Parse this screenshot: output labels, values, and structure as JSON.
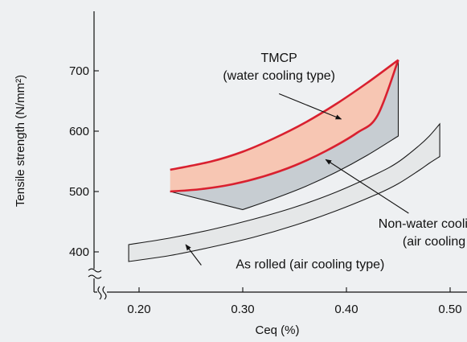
{
  "chart_data": {
    "type": "area",
    "title": "",
    "xlabel": "Ceq (%)",
    "ylabel": "Tensile strength (N/mm²)",
    "xlim": [
      0.15,
      0.51
    ],
    "ylim": [
      380,
      760
    ],
    "grid": false,
    "x_ticks": [
      {
        "value": 0.2,
        "label": "0.20"
      },
      {
        "value": 0.3,
        "label": "0.30"
      },
      {
        "value": 0.4,
        "label": "0.40"
      },
      {
        "value": 0.5,
        "label": "0.50"
      }
    ],
    "y_ticks": [
      {
        "value": 400,
        "label": "400"
      },
      {
        "value": 500,
        "label": "500"
      },
      {
        "value": 600,
        "label": "600"
      },
      {
        "value": 700,
        "label": "700"
      }
    ],
    "axis_breaks": [
      "y-axis break below 400",
      "x-axis break near origin"
    ],
    "series": [
      {
        "name": "TMCP (water cooling type)",
        "color": "#f7c6b3",
        "edge_color": "#d9202f",
        "upper": [
          [
            0.23,
            536
          ],
          [
            0.27,
            550
          ],
          [
            0.3,
            566
          ],
          [
            0.33,
            588
          ],
          [
            0.36,
            614
          ],
          [
            0.39,
            645
          ],
          [
            0.42,
            680
          ],
          [
            0.45,
            718
          ]
        ],
        "lower": [
          [
            0.23,
            500
          ],
          [
            0.26,
            504
          ],
          [
            0.29,
            512
          ],
          [
            0.32,
            525
          ],
          [
            0.35,
            543
          ],
          [
            0.38,
            567
          ],
          [
            0.41,
            597
          ],
          [
            0.43,
            626
          ],
          [
            0.45,
            718
          ]
        ]
      },
      {
        "name": "Non-water cooling TMCP (air cooling type)",
        "color": "#c7cdd2",
        "upper": [
          [
            0.23,
            500
          ],
          [
            0.26,
            504
          ],
          [
            0.29,
            512
          ],
          [
            0.32,
            525
          ],
          [
            0.35,
            543
          ],
          [
            0.38,
            567
          ],
          [
            0.41,
            597
          ],
          [
            0.43,
            626
          ],
          [
            0.45,
            718
          ]
        ],
        "lower": [
          [
            0.3,
            470
          ],
          [
            0.33,
            488
          ],
          [
            0.36,
            508
          ],
          [
            0.39,
            532
          ],
          [
            0.42,
            560
          ],
          [
            0.45,
            592
          ]
        ]
      },
      {
        "name": "As rolled (air cooling type)",
        "color": "#e5e7e8",
        "upper": [
          [
            0.19,
            412
          ],
          [
            0.23,
            423
          ],
          [
            0.27,
            437
          ],
          [
            0.31,
            454
          ],
          [
            0.35,
            474
          ],
          [
            0.39,
            499
          ],
          [
            0.43,
            530
          ],
          [
            0.45,
            549
          ],
          [
            0.47,
            576
          ],
          [
            0.48,
            592
          ],
          [
            0.49,
            612
          ]
        ],
        "lower": [
          [
            0.19,
            384
          ],
          [
            0.23,
            394
          ],
          [
            0.27,
            408
          ],
          [
            0.31,
            424
          ],
          [
            0.35,
            444
          ],
          [
            0.39,
            468
          ],
          [
            0.43,
            496
          ],
          [
            0.45,
            513
          ],
          [
            0.47,
            535
          ],
          [
            0.48,
            547
          ],
          [
            0.49,
            558
          ]
        ]
      }
    ],
    "annotations": [
      {
        "lines": [
          "TMCP",
          "(water cooling type)"
        ],
        "text_at": [
          0.335,
          715
        ],
        "arrow_from": [
          0.335,
          662
        ],
        "arrow_to": [
          0.395,
          620
        ]
      },
      {
        "lines": [
          "Non-water cooling TMCP",
          "(air cooling type)"
        ],
        "text_at": [
          0.5,
          440
        ],
        "arrow_from": [
          0.46,
          464
        ],
        "arrow_to": [
          0.38,
          553
        ]
      },
      {
        "lines": [
          "As rolled (air cooling type)"
        ],
        "text_at": [
          0.365,
          373
        ],
        "arrow_from": [
          0.26,
          378
        ],
        "arrow_to": [
          0.245,
          412
        ]
      }
    ]
  }
}
